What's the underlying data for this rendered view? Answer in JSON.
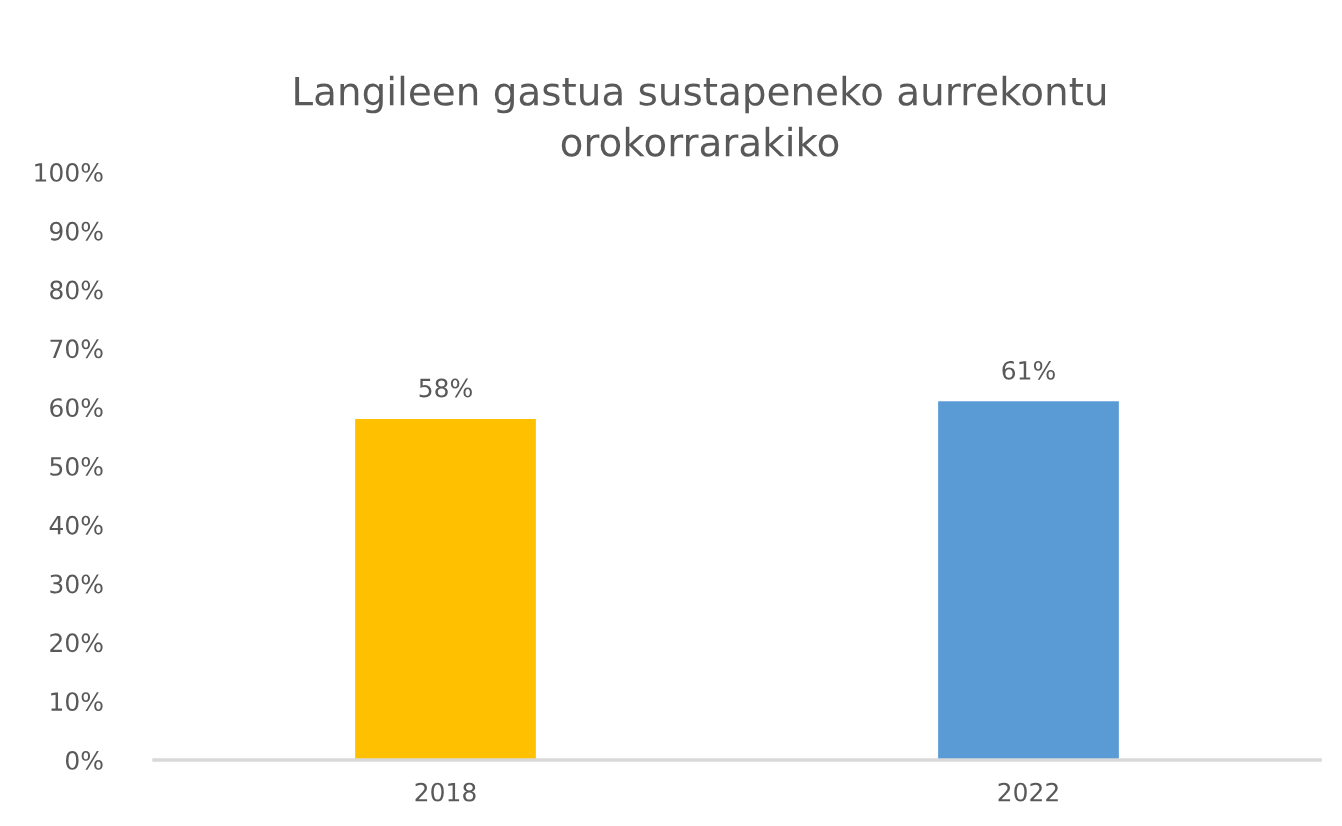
{
  "chart_data": {
    "type": "bar",
    "title": "Langileen gastua sustapeneko aurrekontu\norokorrarakiko",
    "categories": [
      "2018",
      "2022"
    ],
    "values": [
      58,
      61
    ],
    "colors": [
      "#ffc000",
      "#5b9bd5"
    ],
    "value_labels": [
      "58%",
      "61%"
    ],
    "ylim": [
      0,
      100
    ],
    "yticks": [
      {
        "value": 0,
        "label": "0%"
      },
      {
        "value": 10,
        "label": "10%"
      },
      {
        "value": 20,
        "label": "20%"
      },
      {
        "value": 30,
        "label": "30%"
      },
      {
        "value": 40,
        "label": "40%"
      },
      {
        "value": 50,
        "label": "50%"
      },
      {
        "value": 60,
        "label": "60%"
      },
      {
        "value": 70,
        "label": "70%"
      },
      {
        "value": 80,
        "label": "80%"
      },
      {
        "value": 90,
        "label": "90%"
      },
      {
        "value": 100,
        "label": "100%"
      }
    ],
    "grid": false,
    "legend": false
  }
}
